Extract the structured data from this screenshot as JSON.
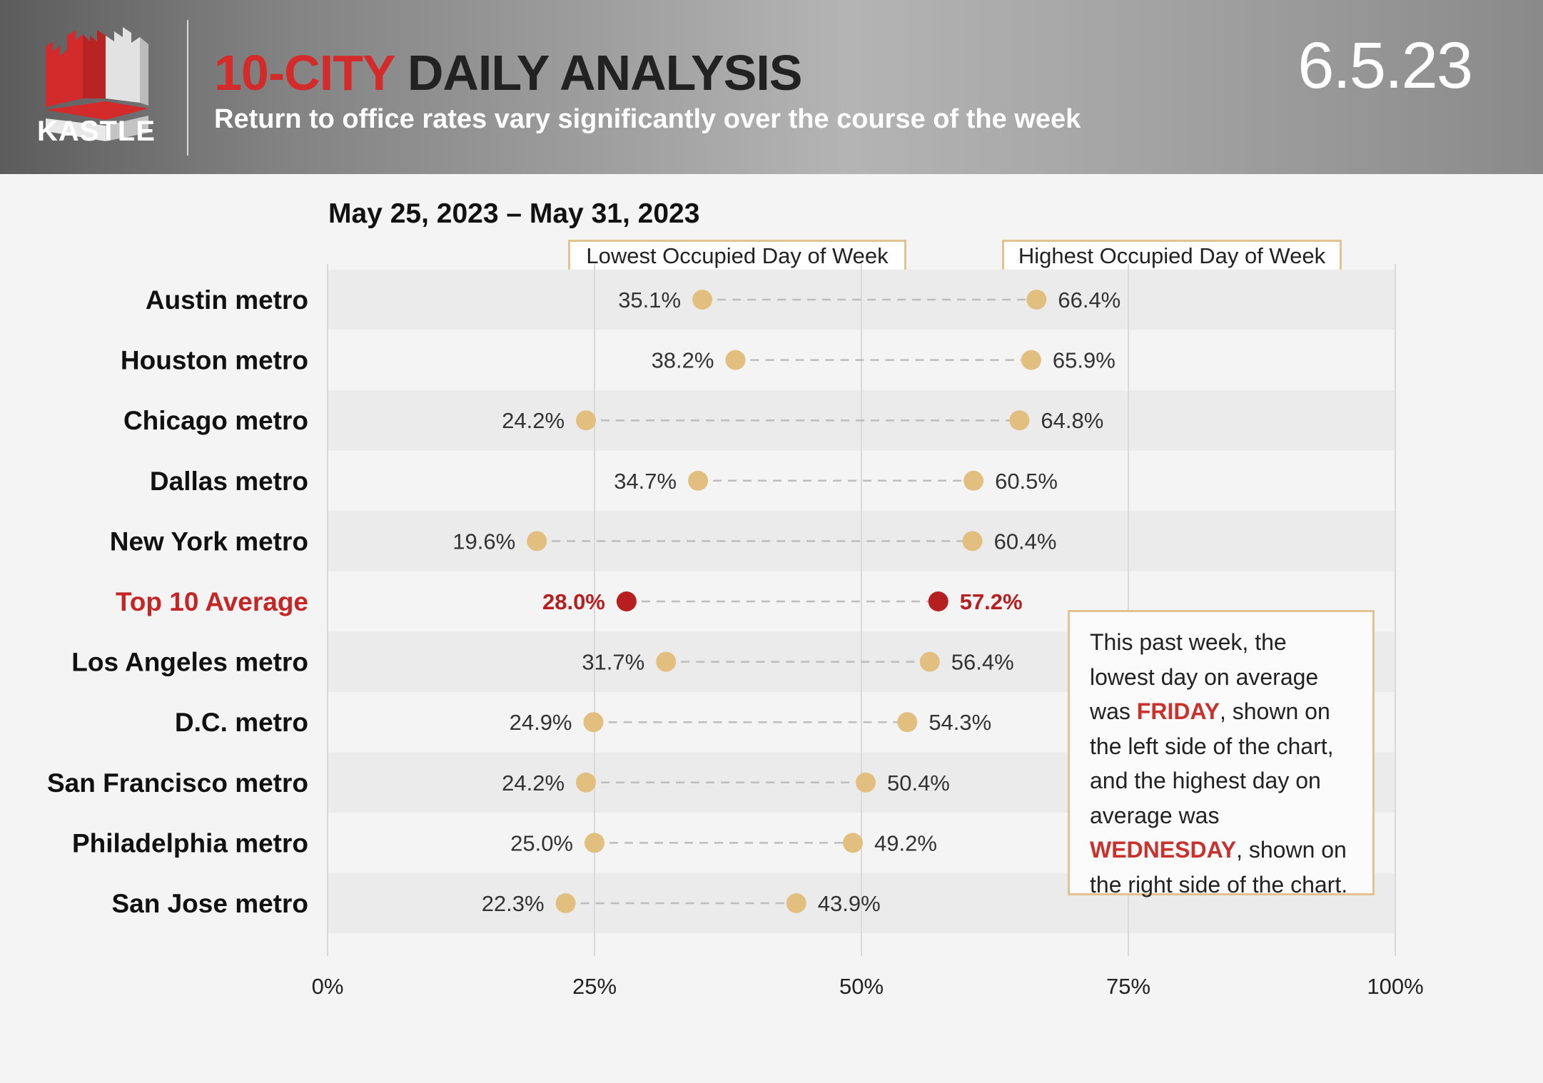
{
  "header": {
    "brand": "KASTLE",
    "title_accent": "10-CITY",
    "title_main": "DAILY ANALYSIS",
    "subtitle": "Return to office rates vary significantly over the course of the week",
    "date": "6.5.23"
  },
  "colors": {
    "accent_red": "#d42a2a",
    "dot": "#e2bf7f",
    "average_dot": "#b51f1f",
    "box_border": "#e2c28e"
  },
  "note": {
    "part1": "This past week, the lowest day on average was",
    "low_day": "FRIDAY",
    "part2": ", shown on the left side of the chart, and the highest day on average was",
    "high_day": "WEDNESDAY",
    "part3": ", shown on the right side of the chart."
  },
  "chart_data": {
    "type": "dumbbell",
    "title": "May 25, 2023 – May 31, 2023",
    "series": [
      {
        "name": "Lowest Occupied Day of Week"
      },
      {
        "name": "Highest Occupied Day of Week"
      }
    ],
    "categories": [
      "Austin metro",
      "Houston metro",
      "Chicago metro",
      "Dallas metro",
      "New York metro",
      "Top 10 Average",
      "Los Angeles metro",
      "D.C. metro",
      "San Francisco metro",
      "Philadelphia metro",
      "San Jose metro"
    ],
    "low": [
      35.1,
      38.2,
      24.2,
      34.7,
      19.6,
      28.0,
      31.7,
      24.9,
      24.2,
      25.0,
      22.3
    ],
    "high": [
      66.4,
      65.9,
      64.8,
      60.5,
      60.4,
      57.2,
      56.4,
      54.3,
      50.4,
      49.2,
      43.9
    ],
    "low_labels": [
      "35.1%",
      "38.2%",
      "24.2%",
      "34.7%",
      "19.6%",
      "28.0%",
      "31.7%",
      "24.9%",
      "24.2%",
      "25.0%",
      "22.3%"
    ],
    "high_labels": [
      "66.4%",
      "65.9%",
      "64.8%",
      "60.5%",
      "60.4%",
      "57.2%",
      "56.4%",
      "54.3%",
      "50.4%",
      "49.2%",
      "43.9%"
    ],
    "highlight": "Top 10 Average",
    "xlim": [
      0,
      100
    ],
    "xticks": [
      0,
      25,
      50,
      75,
      100
    ],
    "xtick_labels": [
      "0%",
      "25%",
      "50%",
      "75%",
      "100%"
    ],
    "grid": true
  }
}
